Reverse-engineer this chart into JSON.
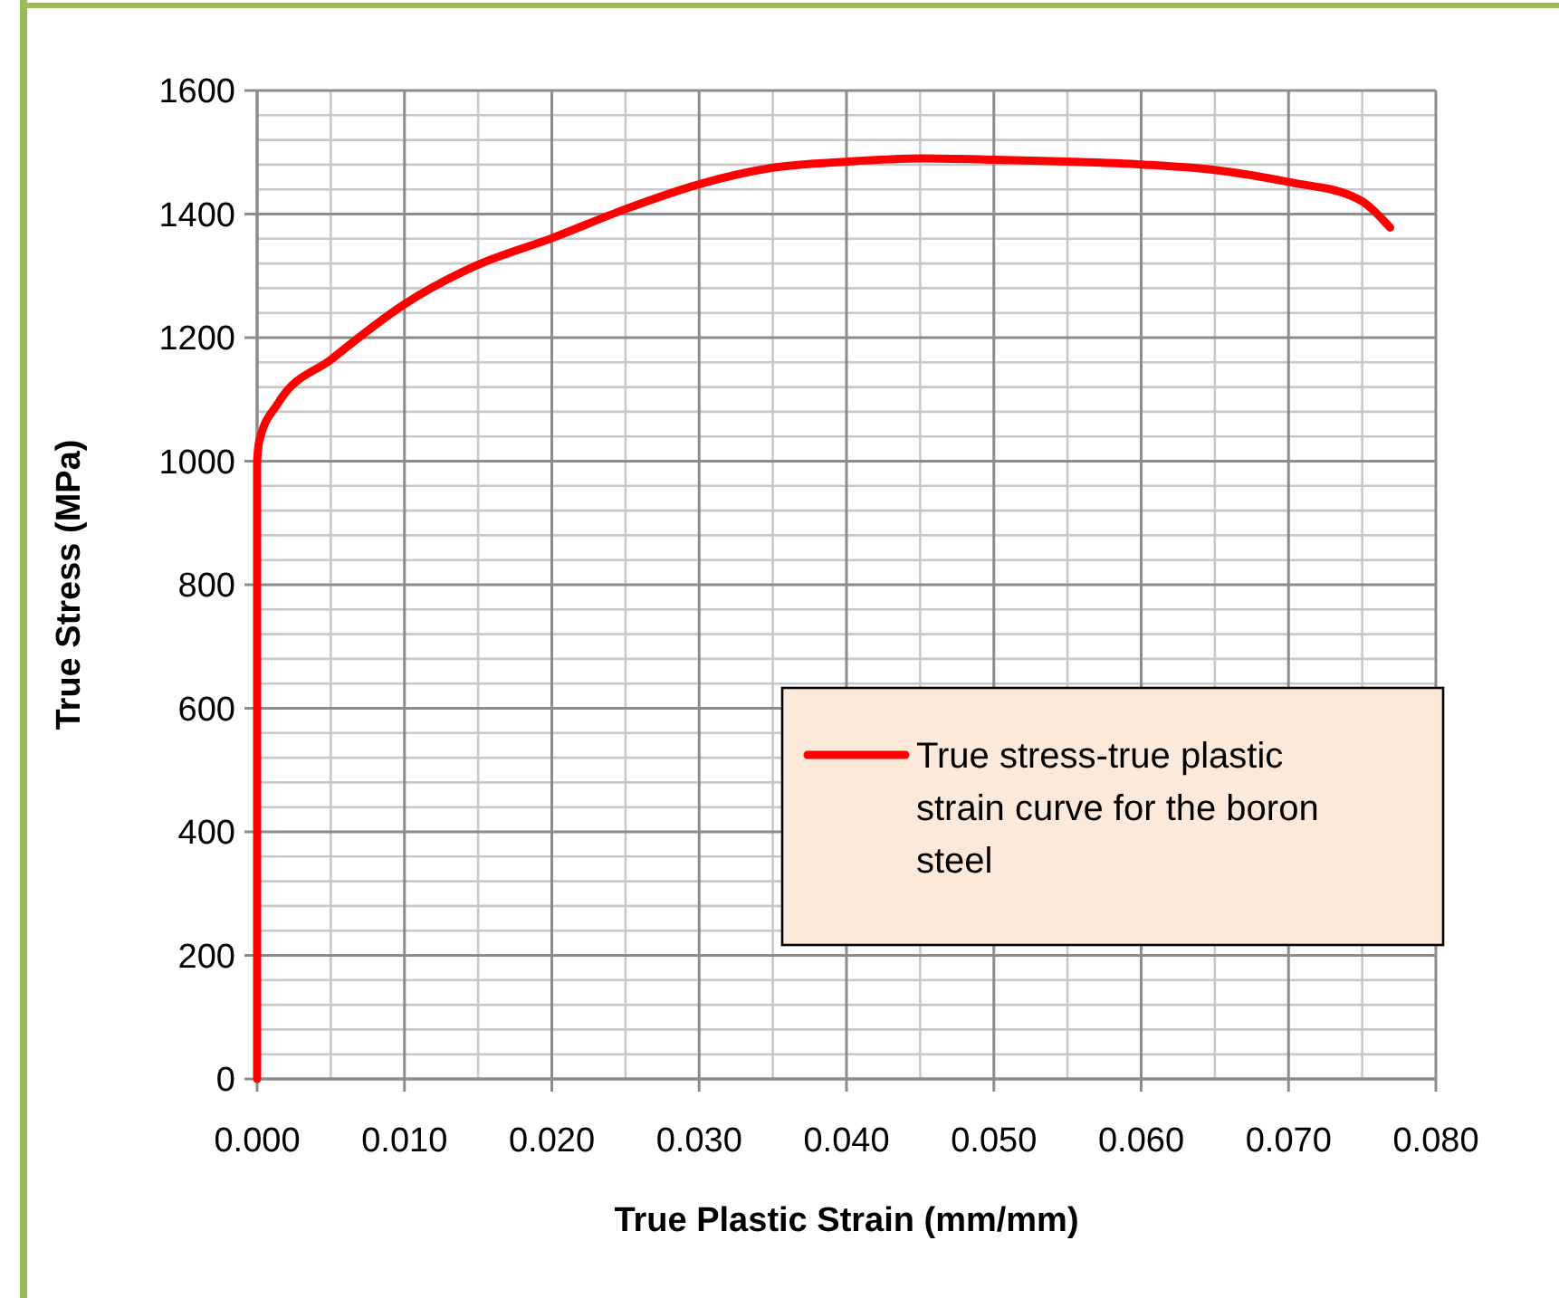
{
  "chart_data": {
    "type": "line",
    "xlabel": "True Plastic Strain (mm/mm)",
    "ylabel": "True Stress (MPa)",
    "x": [
      0,
      0,
      0.00016,
      0.0014,
      0.0051,
      0.01,
      0.0149,
      0.02,
      0.0251,
      0.0301,
      0.035,
      0.0401,
      0.0452,
      0.0501,
      0.055,
      0.0602,
      0.0651,
      0.0702,
      0.0743,
      0.0751,
      0.0769
    ],
    "series": [
      {
        "name": "True stress-true plastic strain curve for the boron steel",
        "color": "#ff0000",
        "values": [
          0,
          1000,
          1034,
          1093,
          1166,
          1254,
          1317,
          1361,
          1409,
          1449,
          1475,
          1485,
          1490,
          1488,
          1485,
          1480,
          1471,
          1451,
          1429,
          1419,
          1378
        ]
      }
    ],
    "xlim": [
      0,
      0.08
    ],
    "xticks": [
      {
        "value": 0,
        "label": "0.000"
      },
      {
        "value": 0.01,
        "label": "0.010"
      },
      {
        "value": 0.02,
        "label": "0.020"
      },
      {
        "value": 0.03,
        "label": "0.030"
      },
      {
        "value": 0.04,
        "label": "0.040"
      },
      {
        "value": 0.05,
        "label": "0.050"
      },
      {
        "value": 0.06,
        "label": "0.060"
      },
      {
        "value": 0.07,
        "label": "0.070"
      },
      {
        "value": 0.08,
        "label": "0.080"
      }
    ],
    "ylim": [
      0,
      1600
    ],
    "yticks": [
      0,
      200,
      400,
      600,
      800,
      1000,
      1200,
      1400,
      1600
    ],
    "grid": true,
    "legend": "right",
    "marker": "none",
    "line_style": "solid"
  }
}
